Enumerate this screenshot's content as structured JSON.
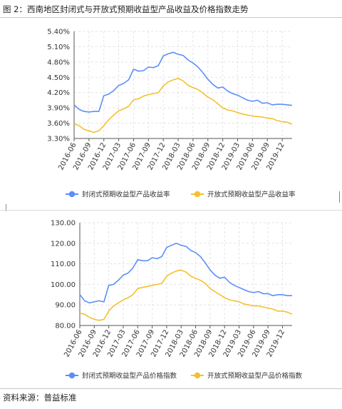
{
  "figure_title": "图 2：西南地区封闭式与开放式预期收益型产品收益及价格指数走势",
  "source_note": "资料来源：普益标准",
  "chart_data": [
    {
      "type": "line",
      "ylim": [
        3.3,
        5.4
      ],
      "y_ticks": [
        "3.30%",
        "3.60%",
        "3.90%",
        "4.20%",
        "4.50%",
        "4.80%",
        "5.10%",
        "5.40%"
      ],
      "y_tick_values": [
        3.3,
        3.6,
        3.9,
        4.2,
        4.5,
        4.8,
        5.1,
        5.4
      ],
      "x_tick_labels": [
        "2016-06",
        "2016-09",
        "2016-12",
        "2017-03",
        "2017-06",
        "2017-09",
        "2017-12",
        "2018-03",
        "2018-06",
        "2018-09",
        "2018-12",
        "2019-03",
        "2019-06",
        "2019-09",
        "2019-12"
      ],
      "grid": true,
      "legend_position": "bottom",
      "series": [
        {
          "name": "封闭式预期收益型产品收益率",
          "color": "#5b8ff9",
          "values": [
            3.96,
            3.87,
            3.83,
            3.82,
            3.83,
            3.83,
            4.14,
            4.17,
            4.24,
            4.34,
            4.38,
            4.45,
            4.66,
            4.62,
            4.63,
            4.7,
            4.69,
            4.73,
            4.92,
            4.96,
            4.99,
            4.95,
            4.93,
            4.84,
            4.78,
            4.7,
            4.59,
            4.46,
            4.36,
            4.29,
            4.31,
            4.23,
            4.18,
            4.15,
            4.1,
            4.05,
            4.03,
            4.05,
            3.99,
            4.0,
            3.96,
            3.97,
            3.97,
            3.96,
            3.95
          ]
        },
        {
          "name": "开放式预期收益型产品收益率",
          "color": "#f5c02d",
          "values": [
            3.59,
            3.55,
            3.48,
            3.45,
            3.42,
            3.45,
            3.55,
            3.67,
            3.76,
            3.84,
            3.88,
            3.93,
            4.06,
            4.08,
            4.13,
            4.16,
            4.18,
            4.2,
            4.33,
            4.41,
            4.45,
            4.48,
            4.43,
            4.34,
            4.3,
            4.26,
            4.19,
            4.11,
            4.06,
            3.98,
            3.9,
            3.86,
            3.84,
            3.81,
            3.78,
            3.76,
            3.74,
            3.73,
            3.72,
            3.7,
            3.69,
            3.65,
            3.63,
            3.62,
            3.58
          ]
        }
      ]
    },
    {
      "type": "line",
      "ylim": [
        80,
        130
      ],
      "y_ticks": [
        "80.00",
        "90.00",
        "100.00",
        "110.00",
        "120.00",
        "130.00"
      ],
      "y_tick_values": [
        80,
        90,
        100,
        110,
        120,
        130
      ],
      "x_tick_labels": [
        "2016-06",
        "2016-09",
        "2016-12",
        "2017-03",
        "2017-06",
        "2017-09",
        "2017-12",
        "2018-03",
        "2018-06",
        "2018-09",
        "2018-12",
        "2019-03",
        "2019-06",
        "2019-09",
        "2019-12"
      ],
      "grid": true,
      "legend_position": "bottom",
      "series": [
        {
          "name": "封闭式预期收益型产品价格指数",
          "color": "#5b8ff9",
          "values": [
            95.0,
            92.0,
            91.0,
            91.5,
            92.0,
            91.5,
            99.5,
            100.0,
            102.0,
            104.5,
            105.5,
            108.0,
            112.0,
            111.5,
            111.5,
            113.0,
            112.5,
            113.5,
            118.0,
            119.0,
            120.0,
            119.0,
            118.5,
            116.5,
            115.5,
            113.5,
            110.5,
            107.0,
            104.5,
            103.0,
            103.5,
            101.0,
            99.5,
            98.5,
            97.5,
            96.5,
            96.0,
            96.5,
            95.5,
            95.5,
            94.5,
            95.0,
            95.0,
            94.5,
            94.5
          ]
        },
        {
          "name": "开放式预期收益型产品价格指数",
          "color": "#f5c02d",
          "values": [
            86.0,
            85.5,
            84.0,
            83.0,
            82.5,
            83.0,
            87.0,
            89.5,
            91.0,
            92.5,
            93.5,
            95.0,
            98.0,
            98.5,
            99.0,
            99.5,
            100.0,
            100.5,
            104.0,
            105.5,
            106.5,
            107.0,
            106.0,
            104.0,
            103.0,
            102.0,
            100.5,
            98.0,
            96.5,
            95.0,
            93.5,
            92.5,
            92.0,
            91.5,
            90.5,
            90.0,
            89.5,
            89.5,
            89.0,
            88.5,
            88.0,
            87.0,
            87.0,
            86.5,
            85.5
          ]
        }
      ]
    }
  ]
}
